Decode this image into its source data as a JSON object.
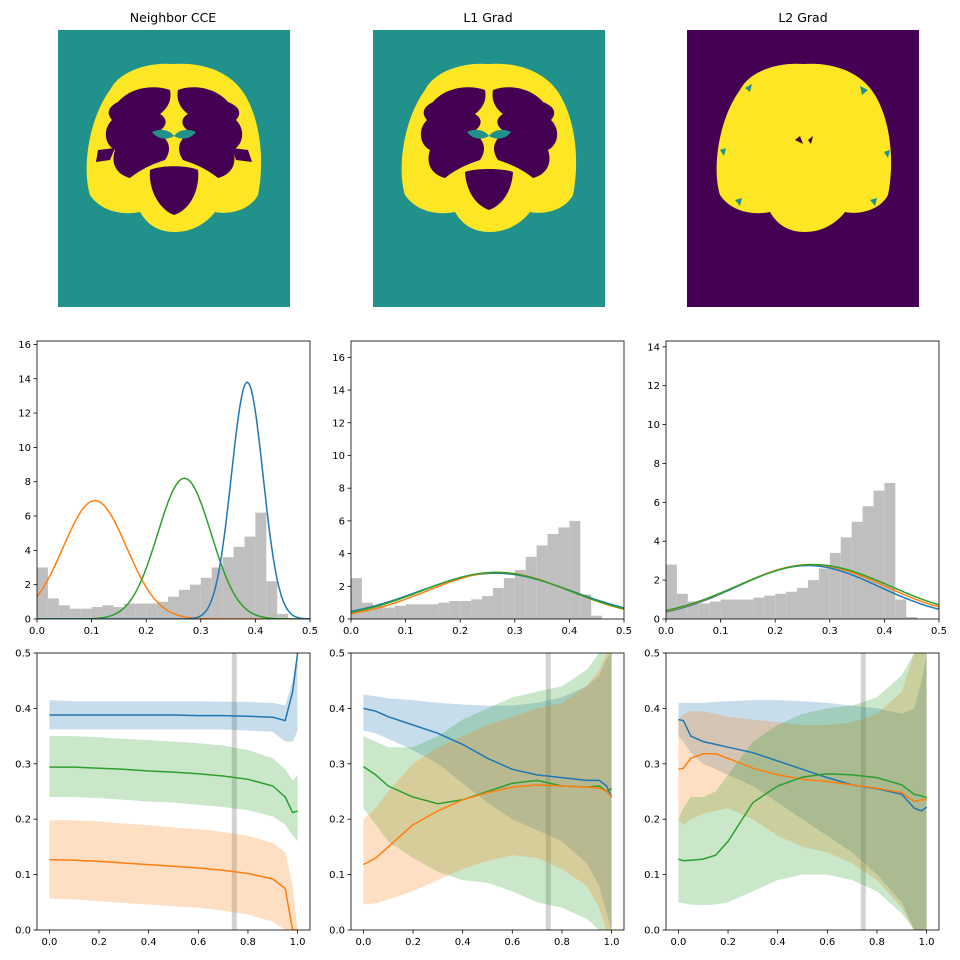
{
  "colors": {
    "background": "#ffffff",
    "axis": "#000000",
    "hist": "#bfbfbf",
    "blue": "#1f77b4",
    "orange": "#ff7f0e",
    "green": "#2ca02c",
    "vline": "#c8c8c8",
    "seg_teal": "#21918c",
    "seg_purple": "#440154",
    "seg_yellow": "#fde725"
  },
  "panels": [
    {
      "title": "Neighbor CCE",
      "background_class": "teal"
    },
    {
      "title": "L1 Grad",
      "background_class": "teal"
    },
    {
      "title": "L2 Grad",
      "background_class": "purple"
    }
  ],
  "chart_data": [
    {
      "type": "histogram+line",
      "title": "",
      "xlim": [
        0,
        0.5
      ],
      "ylim": [
        0,
        16.2
      ],
      "xticks": [
        "0.0",
        "0.1",
        "0.2",
        "0.3",
        "0.4",
        "0.5"
      ],
      "yticks": [
        "0",
        "2",
        "4",
        "6",
        "8",
        "10",
        "12",
        "14",
        "16"
      ],
      "xtick_values": [
        0,
        0.1,
        0.2,
        0.3,
        0.4,
        0.5
      ],
      "ytick_values": [
        0,
        2,
        4,
        6,
        8,
        10,
        12,
        14,
        16
      ],
      "hist_bins": [
        0.0,
        0.02,
        0.04,
        0.06,
        0.08,
        0.1,
        0.12,
        0.14,
        0.16,
        0.18,
        0.2,
        0.22,
        0.24,
        0.26,
        0.28,
        0.3,
        0.32,
        0.34,
        0.36,
        0.38,
        0.4,
        0.42,
        0.44,
        0.46,
        0.48
      ],
      "hist_values": [
        3.0,
        1.2,
        0.8,
        0.6,
        0.6,
        0.7,
        0.8,
        0.7,
        0.9,
        0.9,
        0.9,
        1.0,
        1.3,
        1.7,
        2.0,
        2.4,
        3.0,
        3.6,
        4.2,
        4.8,
        6.2,
        2.2,
        0.3,
        0.0,
        0.0
      ],
      "series": [
        {
          "color": "orange",
          "mu": 0.106,
          "sigma": 0.058,
          "peak": 6.9
        },
        {
          "color": "green",
          "mu": 0.27,
          "sigma": 0.049,
          "peak": 8.2
        },
        {
          "color": "blue",
          "mu": 0.385,
          "sigma": 0.029,
          "peak": 13.8
        }
      ]
    },
    {
      "type": "histogram+line",
      "title": "",
      "xlim": [
        0,
        0.5
      ],
      "ylim": [
        0,
        17
      ],
      "xticks": [
        "0.0",
        "0.1",
        "0.2",
        "0.3",
        "0.4",
        "0.5"
      ],
      "yticks": [
        "0",
        "2",
        "4",
        "6",
        "8",
        "10",
        "12",
        "14",
        "16"
      ],
      "xtick_values": [
        0,
        0.1,
        0.2,
        0.3,
        0.4,
        0.5
      ],
      "ytick_values": [
        0,
        2,
        4,
        6,
        8,
        10,
        12,
        14,
        16
      ],
      "hist_bins": [
        0.0,
        0.02,
        0.04,
        0.06,
        0.08,
        0.1,
        0.12,
        0.14,
        0.16,
        0.18,
        0.2,
        0.22,
        0.24,
        0.26,
        0.28,
        0.3,
        0.32,
        0.34,
        0.36,
        0.38,
        0.4,
        0.42,
        0.44,
        0.46,
        0.48
      ],
      "hist_values": [
        2.5,
        1.0,
        0.8,
        0.7,
        0.8,
        0.9,
        0.9,
        0.9,
        1.0,
        1.1,
        1.1,
        1.2,
        1.4,
        1.9,
        2.5,
        3.0,
        3.8,
        4.5,
        5.2,
        5.6,
        6.0,
        1.5,
        0.2,
        0.0,
        0.0
      ],
      "series": [
        {
          "color": "blue",
          "mu": 0.265,
          "sigma": 0.14,
          "peak": 2.8
        },
        {
          "color": "orange",
          "mu": 0.27,
          "sigma": 0.13,
          "peak": 2.85
        },
        {
          "color": "green",
          "mu": 0.265,
          "sigma": 0.135,
          "peak": 2.85
        }
      ]
    },
    {
      "type": "histogram+line",
      "title": "",
      "xlim": [
        0,
        0.5
      ],
      "ylim": [
        0,
        14.3
      ],
      "xticks": [
        "0.0",
        "0.1",
        "0.2",
        "0.3",
        "0.4",
        "0.5"
      ],
      "yticks": [
        "0",
        "2",
        "4",
        "6",
        "8",
        "10",
        "12",
        "14"
      ],
      "xtick_values": [
        0,
        0.1,
        0.2,
        0.3,
        0.4,
        0.5
      ],
      "ytick_values": [
        0,
        2,
        4,
        6,
        8,
        10,
        12,
        14
      ],
      "hist_bins": [
        0.0,
        0.02,
        0.04,
        0.06,
        0.08,
        0.1,
        0.12,
        0.14,
        0.16,
        0.18,
        0.2,
        0.22,
        0.24,
        0.26,
        0.28,
        0.3,
        0.32,
        0.34,
        0.36,
        0.38,
        0.4,
        0.42,
        0.44,
        0.46,
        0.48
      ],
      "hist_values": [
        2.8,
        1.3,
        0.9,
        0.8,
        0.9,
        1.0,
        1.0,
        1.0,
        1.1,
        1.2,
        1.3,
        1.4,
        1.6,
        2.0,
        2.6,
        3.4,
        4.2,
        5.0,
        5.8,
        6.6,
        7.0,
        1.0,
        0.1,
        0.0,
        0.0
      ],
      "series": [
        {
          "color": "blue",
          "mu": 0.26,
          "sigma": 0.13,
          "peak": 2.75
        },
        {
          "color": "orange",
          "mu": 0.265,
          "sigma": 0.135,
          "peak": 2.8
        },
        {
          "color": "green",
          "mu": 0.27,
          "sigma": 0.14,
          "peak": 2.8
        }
      ]
    },
    {
      "type": "line",
      "title": "",
      "xlim": [
        -0.05,
        1.05
      ],
      "ylim": [
        0,
        0.5
      ],
      "xticks": [
        "0.0",
        "0.2",
        "0.4",
        "0.6",
        "0.8",
        "1.0"
      ],
      "yticks": [
        "0.0",
        "0.1",
        "0.2",
        "0.3",
        "0.4",
        "0.5"
      ],
      "xtick_values": [
        0,
        0.2,
        0.4,
        0.6,
        0.8,
        1.0
      ],
      "ytick_values": [
        0,
        0.1,
        0.2,
        0.3,
        0.4,
        0.5
      ],
      "vline_x": 0.745,
      "x": [
        0.0,
        0.1,
        0.2,
        0.3,
        0.4,
        0.5,
        0.6,
        0.7,
        0.8,
        0.9,
        0.95,
        0.98,
        1.0
      ],
      "series": [
        {
          "color": "blue",
          "y": [
            0.388,
            0.388,
            0.388,
            0.388,
            0.388,
            0.388,
            0.387,
            0.387,
            0.386,
            0.384,
            0.378,
            0.43,
            0.5
          ],
          "upper": [
            0.415,
            0.413,
            0.413,
            0.413,
            0.413,
            0.413,
            0.413,
            0.412,
            0.412,
            0.41,
            0.405,
            0.45,
            0.5
          ],
          "lower": [
            0.362,
            0.362,
            0.362,
            0.362,
            0.362,
            0.362,
            0.362,
            0.362,
            0.36,
            0.358,
            0.34,
            0.34,
            0.36
          ]
        },
        {
          "color": "green",
          "y": [
            0.294,
            0.294,
            0.292,
            0.29,
            0.287,
            0.285,
            0.282,
            0.278,
            0.272,
            0.26,
            0.24,
            0.212,
            0.215
          ],
          "upper": [
            0.35,
            0.35,
            0.348,
            0.345,
            0.343,
            0.34,
            0.337,
            0.333,
            0.325,
            0.31,
            0.29,
            0.27,
            0.28
          ],
          "lower": [
            0.24,
            0.24,
            0.238,
            0.235,
            0.232,
            0.23,
            0.226,
            0.222,
            0.216,
            0.205,
            0.19,
            0.17,
            0.16
          ]
        },
        {
          "color": "orange",
          "y": [
            0.127,
            0.126,
            0.124,
            0.121,
            0.118,
            0.115,
            0.112,
            0.108,
            0.102,
            0.092,
            0.075,
            0.0,
            0.0
          ],
          "upper": [
            0.198,
            0.198,
            0.196,
            0.192,
            0.189,
            0.185,
            0.182,
            0.177,
            0.17,
            0.157,
            0.14,
            0.08,
            0.0
          ],
          "lower": [
            0.057,
            0.055,
            0.052,
            0.049,
            0.046,
            0.043,
            0.04,
            0.035,
            0.028,
            0.015,
            0.0,
            0.0,
            0.0
          ]
        }
      ]
    },
    {
      "type": "line",
      "title": "",
      "xlim": [
        -0.05,
        1.05
      ],
      "ylim": [
        0,
        0.5
      ],
      "xticks": [
        "0.0",
        "0.2",
        "0.4",
        "0.6",
        "0.8",
        "1.0"
      ],
      "yticks": [
        "0.0",
        "0.1",
        "0.2",
        "0.3",
        "0.4",
        "0.5"
      ],
      "xtick_values": [
        0,
        0.2,
        0.4,
        0.6,
        0.8,
        1.0
      ],
      "ytick_values": [
        0,
        0.1,
        0.2,
        0.3,
        0.4,
        0.5
      ],
      "vline_x": 0.745,
      "x": [
        0.0,
        0.05,
        0.1,
        0.2,
        0.3,
        0.4,
        0.5,
        0.6,
        0.7,
        0.8,
        0.9,
        0.95,
        0.98,
        1.0
      ],
      "series": [
        {
          "color": "blue",
          "y": [
            0.4,
            0.395,
            0.385,
            0.37,
            0.355,
            0.335,
            0.31,
            0.29,
            0.28,
            0.275,
            0.27,
            0.27,
            0.26,
            0.24
          ],
          "upper": [
            0.425,
            0.422,
            0.418,
            0.415,
            0.41,
            0.407,
            0.405,
            0.405,
            0.41,
            0.42,
            0.44,
            0.46,
            0.49,
            0.5
          ],
          "lower": [
            0.36,
            0.355,
            0.345,
            0.325,
            0.3,
            0.265,
            0.23,
            0.2,
            0.18,
            0.16,
            0.12,
            0.08,
            0.03,
            0.0
          ]
        },
        {
          "color": "green",
          "y": [
            0.295,
            0.28,
            0.26,
            0.24,
            0.228,
            0.235,
            0.25,
            0.265,
            0.27,
            0.26,
            0.258,
            0.26,
            0.25,
            0.255
          ],
          "upper": [
            0.35,
            0.34,
            0.33,
            0.33,
            0.35,
            0.38,
            0.4,
            0.42,
            0.43,
            0.44,
            0.47,
            0.5,
            0.5,
            0.5
          ],
          "lower": [
            0.22,
            0.19,
            0.16,
            0.13,
            0.105,
            0.09,
            0.085,
            0.07,
            0.05,
            0.04,
            0.02,
            0.0,
            0.0,
            0.0
          ]
        },
        {
          "color": "orange",
          "y": [
            0.118,
            0.13,
            0.15,
            0.19,
            0.215,
            0.235,
            0.248,
            0.258,
            0.262,
            0.26,
            0.258,
            0.256,
            0.25,
            0.24
          ],
          "upper": [
            0.2,
            0.22,
            0.25,
            0.3,
            0.33,
            0.35,
            0.37,
            0.385,
            0.4,
            0.41,
            0.44,
            0.47,
            0.5,
            0.5
          ],
          "lower": [
            0.046,
            0.048,
            0.055,
            0.07,
            0.09,
            0.11,
            0.125,
            0.135,
            0.13,
            0.11,
            0.08,
            0.04,
            0.0,
            0.0
          ]
        }
      ]
    },
    {
      "type": "line",
      "title": "",
      "xlim": [
        -0.05,
        1.05
      ],
      "ylim": [
        0,
        0.5
      ],
      "xticks": [
        "0.0",
        "0.2",
        "0.4",
        "0.6",
        "0.8",
        "1.0"
      ],
      "yticks": [
        "0.0",
        "0.1",
        "0.2",
        "0.3",
        "0.4",
        "0.5"
      ],
      "xtick_values": [
        0,
        0.2,
        0.4,
        0.6,
        0.8,
        1.0
      ],
      "ytick_values": [
        0,
        0.1,
        0.2,
        0.3,
        0.4,
        0.5
      ],
      "vline_x": 0.745,
      "x": [
        0.0,
        0.02,
        0.05,
        0.1,
        0.15,
        0.2,
        0.3,
        0.4,
        0.5,
        0.6,
        0.7,
        0.8,
        0.9,
        0.95,
        0.98,
        1.0
      ],
      "series": [
        {
          "color": "blue",
          "y": [
            0.38,
            0.378,
            0.35,
            0.34,
            0.335,
            0.33,
            0.32,
            0.305,
            0.29,
            0.275,
            0.262,
            0.255,
            0.245,
            0.22,
            0.215,
            0.222
          ],
          "upper": [
            0.41,
            0.41,
            0.41,
            0.41,
            0.412,
            0.413,
            0.415,
            0.415,
            0.413,
            0.41,
            0.405,
            0.4,
            0.39,
            0.4,
            0.45,
            0.5
          ],
          "lower": [
            0.35,
            0.34,
            0.32,
            0.3,
            0.29,
            0.28,
            0.26,
            0.23,
            0.2,
            0.17,
            0.14,
            0.1,
            0.05,
            0.0,
            0.0,
            0.0
          ]
        },
        {
          "color": "orange",
          "y": [
            0.29,
            0.292,
            0.31,
            0.318,
            0.318,
            0.31,
            0.292,
            0.28,
            0.272,
            0.268,
            0.262,
            0.256,
            0.248,
            0.232,
            0.235,
            0.235
          ],
          "upper": [
            0.38,
            0.39,
            0.395,
            0.395,
            0.39,
            0.385,
            0.38,
            0.375,
            0.37,
            0.37,
            0.375,
            0.39,
            0.43,
            0.5,
            0.5,
            0.5
          ],
          "lower": [
            0.2,
            0.19,
            0.2,
            0.21,
            0.215,
            0.22,
            0.2,
            0.17,
            0.15,
            0.14,
            0.12,
            0.09,
            0.04,
            0.0,
            0.0,
            0.0
          ]
        },
        {
          "color": "green",
          "y": [
            0.128,
            0.125,
            0.126,
            0.128,
            0.135,
            0.16,
            0.23,
            0.26,
            0.276,
            0.282,
            0.28,
            0.275,
            0.262,
            0.245,
            0.242,
            0.238
          ],
          "upper": [
            0.2,
            0.22,
            0.24,
            0.24,
            0.25,
            0.28,
            0.34,
            0.37,
            0.39,
            0.4,
            0.405,
            0.42,
            0.46,
            0.5,
            0.5,
            0.5
          ],
          "lower": [
            0.05,
            0.048,
            0.046,
            0.045,
            0.046,
            0.05,
            0.07,
            0.09,
            0.1,
            0.1,
            0.09,
            0.07,
            0.03,
            0.0,
            0.0,
            0.0
          ]
        }
      ]
    }
  ]
}
